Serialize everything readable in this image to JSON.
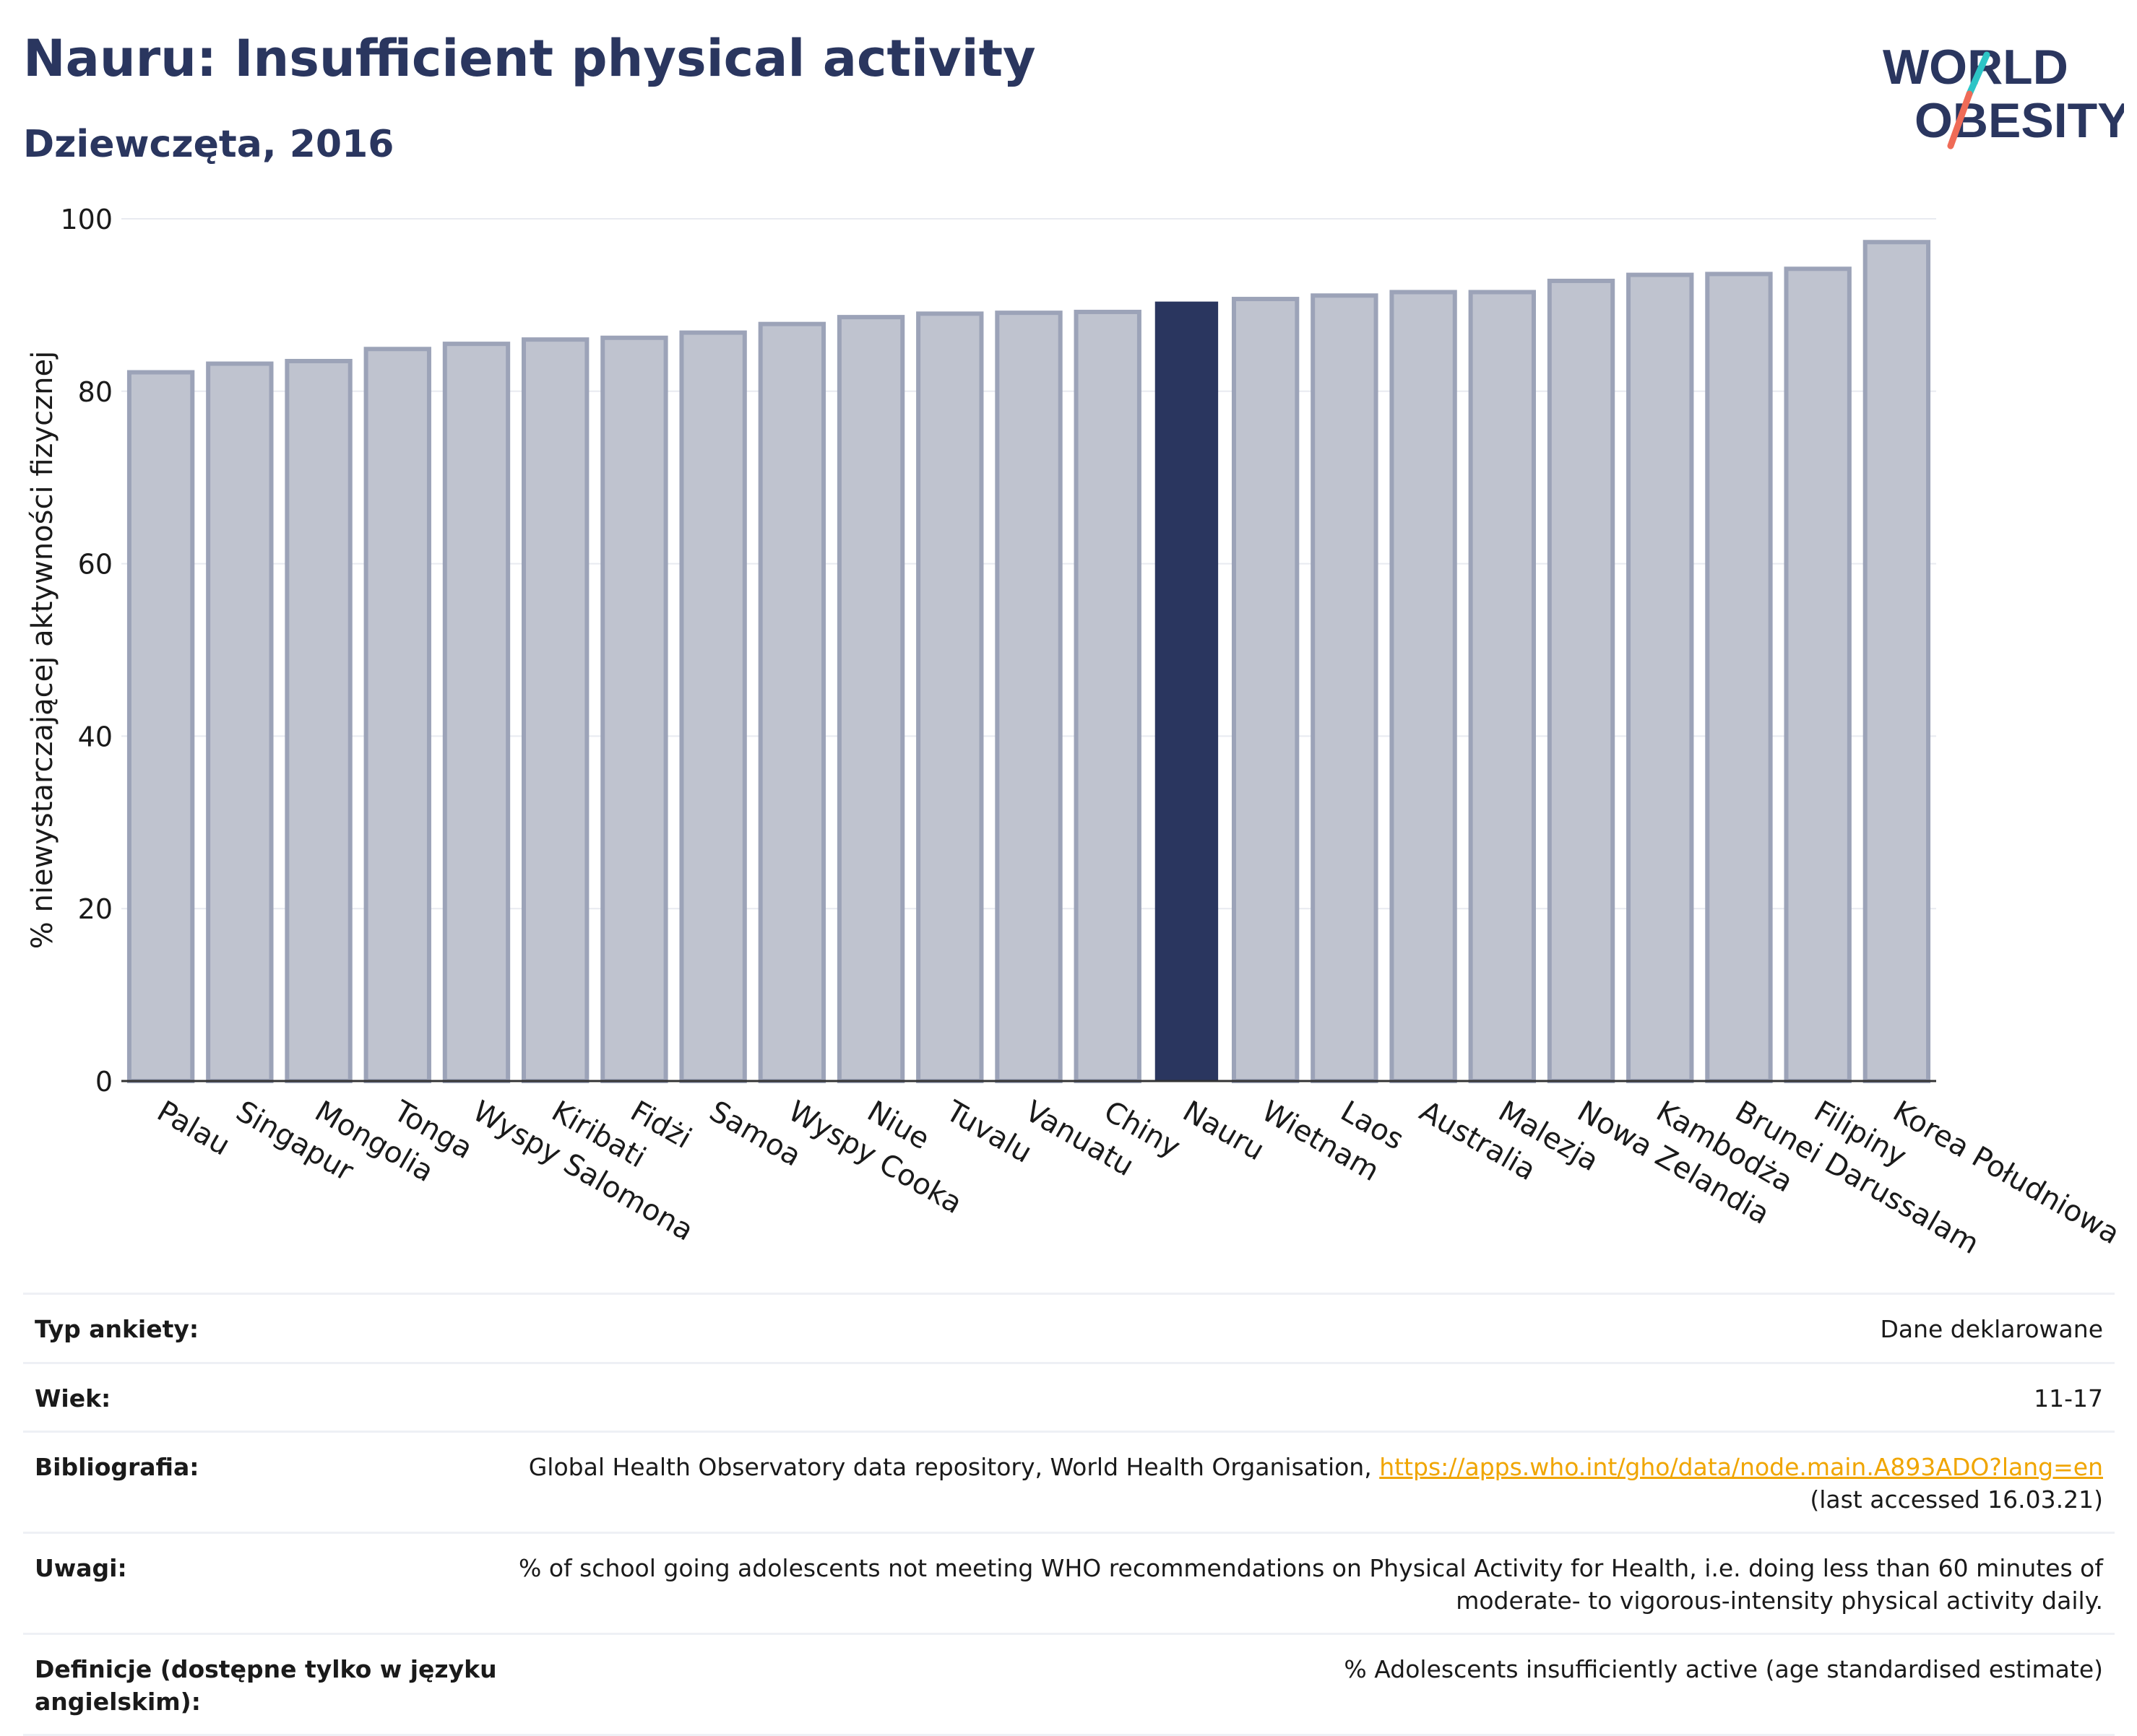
{
  "header": {
    "title": "Nauru: Insufficient physical activity",
    "subtitle": "Dziewczęta, 2016"
  },
  "logo": {
    "line1": "WORLD",
    "line2": "OBESITY",
    "accent_colors": [
      "#2ec4c6",
      "#ef6b57"
    ],
    "text_color": "#2a365f"
  },
  "colors": {
    "bar": "#2a365f",
    "bar_dim": "#bfc3cf",
    "bar_dim_edge": "#9ca3b8",
    "grid": "#e8eaf0"
  },
  "chart_data": {
    "type": "bar",
    "categories": [
      "Palau",
      "Singapur",
      "Mongolia",
      "Tonga",
      "Wyspy Salomona",
      "Kiribati",
      "Fidżi",
      "Samoa",
      "Wyspy Cooka",
      "Niue",
      "Tuvalu",
      "Vanuatu",
      "Chiny",
      "Nauru",
      "Wietnam",
      "Laos",
      "Australia",
      "Malezja",
      "Nowa Zelandia",
      "Kambodża",
      "Brunei Darussalam",
      "Filipiny",
      "Korea Południowa"
    ],
    "values": [
      82.2,
      83.2,
      83.5,
      84.9,
      85.5,
      86.0,
      86.2,
      86.8,
      87.8,
      88.6,
      89.0,
      89.1,
      89.2,
      90.4,
      90.7,
      91.1,
      91.5,
      91.5,
      92.8,
      93.5,
      93.6,
      94.2,
      97.3
    ],
    "highlight": "Nauru",
    "ylabel": "% niewystarczającej aktywności fizycznej",
    "ylim": [
      0,
      100
    ],
    "yticks": [
      0,
      20,
      40,
      60,
      80,
      100
    ],
    "grid": true
  },
  "meta": [
    {
      "label": "Typ ankiety:",
      "value": "Dane deklarowane"
    },
    {
      "label": "Wiek:",
      "value": "11-17"
    },
    {
      "label": "Bibliografia:",
      "value": "Global Health Observatory data repository, World Health Organisation, ",
      "link": "https://apps.who.int/gho/data/node.main.A893ADO?lang=en",
      "value2": "(last accessed 16.03.21)"
    },
    {
      "label": "Uwagi:",
      "value": "% of school going adolescents not meeting WHO recommendations on Physical Activity for Health, i.e. doing less than 60 minutes of",
      "value2": "moderate- to vigorous-intensity physical activity daily."
    },
    {
      "label": "Definicje (dostępne tylko w języku angielskim):",
      "value": "% Adolescents insufficiently active (age standardised estimate)"
    }
  ]
}
